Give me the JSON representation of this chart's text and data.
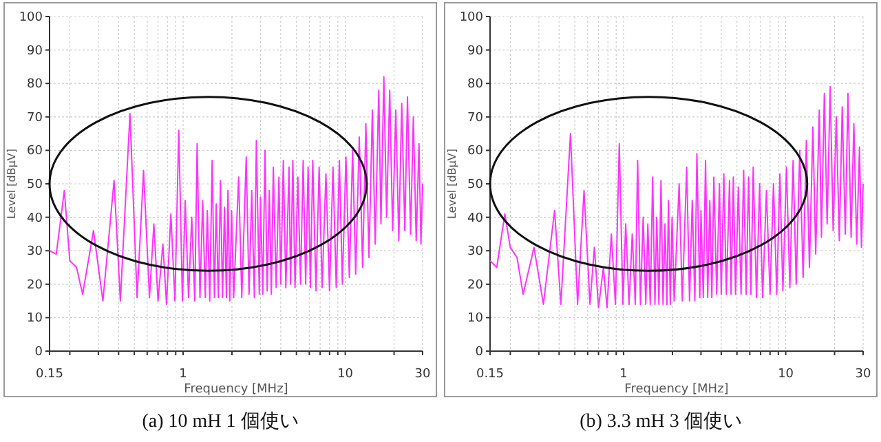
{
  "chart_data": [
    {
      "type": "line",
      "title": "(a) 10 mH 1 個使い",
      "xlabel": "Frequency [MHz]",
      "ylabel": "Level [dBµV]",
      "log": "x",
      "grid": true,
      "xlim": [
        0.15,
        30
      ],
      "ylim": [
        0,
        100
      ],
      "xticks": [
        0.15,
        {
          "value": 0.2,
          "label": null
        },
        {
          "value": 0.3,
          "label": null
        },
        {
          "value": 0.4,
          "label": null
        },
        {
          "value": 0.5,
          "label": null
        },
        {
          "value": 0.6,
          "label": null
        },
        {
          "value": 0.7,
          "label": null
        },
        {
          "value": 0.8,
          "label": null
        },
        {
          "value": 0.9,
          "label": null
        },
        1,
        {
          "value": 2,
          "label": null
        },
        {
          "value": 3,
          "label": null
        },
        {
          "value": 4,
          "label": null
        },
        {
          "value": 5,
          "label": null
        },
        {
          "value": 6,
          "label": null
        },
        {
          "value": 7,
          "label": null
        },
        {
          "value": 8,
          "label": null
        },
        {
          "value": 9,
          "label": null
        },
        10,
        {
          "value": 20,
          "label": null
        },
        30
      ],
      "yticks": [
        0,
        10,
        20,
        30,
        40,
        50,
        60,
        70,
        80,
        90,
        100
      ],
      "x": [
        0.15,
        0.165,
        0.185,
        0.2,
        0.22,
        0.24,
        0.28,
        0.32,
        0.375,
        0.41,
        0.47,
        0.52,
        0.57,
        0.62,
        0.66,
        0.7,
        0.75,
        0.79,
        0.84,
        0.89,
        0.94,
        0.99,
        1.03,
        1.08,
        1.13,
        1.18,
        1.22,
        1.27,
        1.32,
        1.37,
        1.41,
        1.46,
        1.51,
        1.56,
        1.6,
        1.65,
        1.7,
        1.75,
        1.8,
        1.85,
        1.89,
        1.94,
        1.99,
        2.05,
        2.2,
        2.3,
        2.45,
        2.55,
        2.65,
        2.75,
        2.83,
        2.95,
        3.0,
        3.1,
        3.2,
        3.3,
        3.4,
        3.5,
        3.6,
        3.75,
        3.9,
        4.0,
        4.15,
        4.3,
        4.5,
        4.6,
        4.75,
        4.9,
        5.1,
        5.3,
        5.5,
        5.7,
        5.9,
        6.1,
        6.3,
        6.6,
        6.9,
        7.2,
        7.6,
        8.0,
        8.4,
        8.8,
        9.2,
        9.6,
        10.1,
        10.6,
        11.1,
        11.6,
        12.2,
        12.8,
        13.4,
        14.0,
        14.7,
        15.3,
        16.1,
        16.6,
        17.3,
        18.0,
        18.8,
        19.6,
        20.5,
        21.4,
        22.3,
        23.3,
        24.2,
        25.3,
        26.3,
        27.4,
        28.5,
        29.3,
        30
      ],
      "series": [
        {
          "color": "#ff33ff",
          "values": [
            30,
            29,
            48,
            27,
            25,
            17,
            36,
            15,
            51,
            15,
            71,
            16,
            54,
            16,
            38,
            15,
            32,
            14,
            41,
            15,
            66,
            15,
            45,
            16,
            40,
            15,
            62,
            16,
            45,
            16,
            42,
            15,
            57,
            16,
            44,
            16,
            51,
            16,
            43,
            16,
            48,
            15,
            42,
            16,
            52,
            16,
            58,
            17,
            48,
            16,
            63,
            17,
            46,
            17,
            60,
            18,
            48,
            17,
            55,
            19,
            52,
            20,
            57,
            19,
            55,
            20,
            57,
            19,
            52,
            20,
            57,
            20,
            55,
            19,
            57,
            18,
            55,
            19,
            53,
            18,
            55,
            19,
            57,
            20,
            58,
            22,
            60,
            23,
            64,
            25,
            68,
            28,
            72,
            32,
            78,
            38,
            82,
            40,
            78,
            36,
            72,
            33,
            74,
            36,
            76,
            35,
            70,
            33,
            62,
            32,
            50
          ]
        }
      ]
    },
    {
      "type": "line",
      "title": "(b) 3.3 mH 3 個使い",
      "xlabel": "Frequency [MHz]",
      "ylabel": "Level [dBµV]",
      "log": "x",
      "grid": true,
      "xlim": [
        0.15,
        30
      ],
      "ylim": [
        0,
        100
      ],
      "xticks": [
        0.15,
        {
          "value": 0.2,
          "label": null
        },
        {
          "value": 0.3,
          "label": null
        },
        {
          "value": 0.4,
          "label": null
        },
        {
          "value": 0.5,
          "label": null
        },
        {
          "value": 0.6,
          "label": null
        },
        {
          "value": 0.7,
          "label": null
        },
        {
          "value": 0.8,
          "label": null
        },
        {
          "value": 0.9,
          "label": null
        },
        1,
        {
          "value": 2,
          "label": null
        },
        {
          "value": 3,
          "label": null
        },
        {
          "value": 4,
          "label": null
        },
        {
          "value": 5,
          "label": null
        },
        {
          "value": 6,
          "label": null
        },
        {
          "value": 7,
          "label": null
        },
        {
          "value": 8,
          "label": null
        },
        {
          "value": 9,
          "label": null
        },
        10,
        {
          "value": 20,
          "label": null
        },
        30
      ],
      "yticks": [
        0,
        10,
        20,
        30,
        40,
        50,
        60,
        70,
        80,
        90,
        100
      ],
      "x": [
        0.15,
        0.165,
        0.185,
        0.2,
        0.22,
        0.24,
        0.28,
        0.32,
        0.375,
        0.41,
        0.47,
        0.52,
        0.57,
        0.62,
        0.66,
        0.7,
        0.75,
        0.79,
        0.84,
        0.89,
        0.94,
        0.99,
        1.03,
        1.08,
        1.13,
        1.18,
        1.22,
        1.27,
        1.32,
        1.37,
        1.41,
        1.46,
        1.51,
        1.56,
        1.6,
        1.65,
        1.7,
        1.75,
        1.8,
        1.85,
        1.89,
        1.94,
        1.99,
        2.05,
        2.2,
        2.3,
        2.45,
        2.55,
        2.65,
        2.75,
        2.83,
        2.95,
        3.0,
        3.1,
        3.2,
        3.3,
        3.4,
        3.5,
        3.6,
        3.75,
        3.9,
        4.0,
        4.15,
        4.3,
        4.5,
        4.6,
        4.75,
        4.9,
        5.1,
        5.3,
        5.5,
        5.7,
        5.9,
        6.1,
        6.3,
        6.6,
        6.9,
        7.2,
        7.6,
        8.0,
        8.4,
        8.8,
        9.2,
        9.6,
        10.1,
        10.6,
        11.1,
        11.6,
        12.2,
        12.8,
        13.4,
        14.0,
        14.7,
        15.3,
        16.1,
        16.6,
        17.3,
        18.0,
        18.8,
        19.6,
        20.5,
        21.4,
        22.3,
        23.3,
        24.2,
        25.3,
        26.3,
        27.4,
        28.5,
        29.3,
        30
      ],
      "series": [
        {
          "color": "#ff33ff",
          "values": [
            27,
            25,
            41,
            31,
            28,
            17,
            31,
            14,
            42,
            14,
            65,
            14,
            48,
            14,
            31,
            13,
            25,
            13,
            35,
            14,
            62,
            14,
            38,
            14,
            35,
            14,
            57,
            14,
            40,
            14,
            38,
            14,
            52,
            14,
            40,
            14,
            51,
            14,
            38,
            14,
            45,
            14,
            40,
            15,
            50,
            15,
            55,
            15,
            45,
            15,
            59,
            16,
            42,
            16,
            57,
            16,
            45,
            16,
            52,
            17,
            50,
            17,
            53,
            17,
            51,
            17,
            52,
            17,
            49,
            17,
            54,
            17,
            52,
            17,
            55,
            16,
            50,
            16,
            48,
            17,
            50,
            17,
            53,
            18,
            55,
            19,
            57,
            20,
            60,
            22,
            63,
            25,
            67,
            29,
            72,
            34,
            77,
            38,
            79,
            36,
            70,
            33,
            73,
            35,
            77,
            34,
            68,
            32,
            61,
            31,
            50
          ]
        }
      ]
    }
  ]
}
